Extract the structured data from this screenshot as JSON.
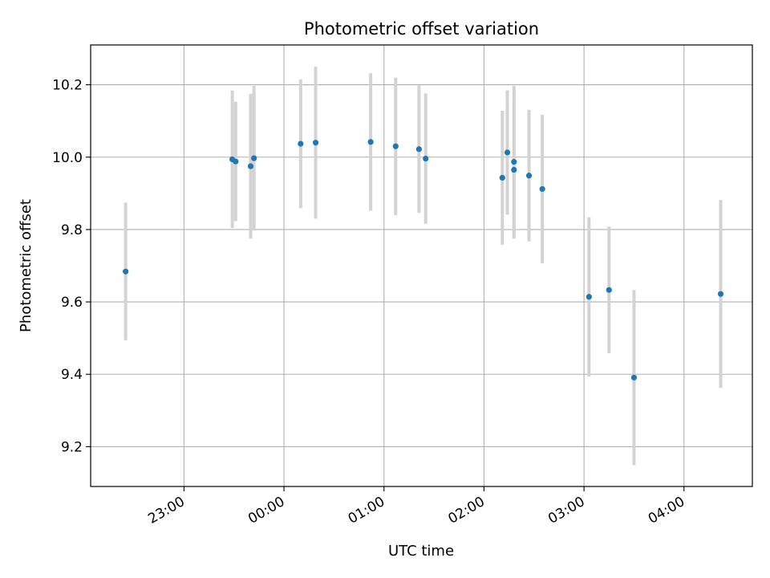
{
  "chart_data": {
    "type": "scatter",
    "title": "Photometric offset variation",
    "xlabel": "UTC time",
    "ylabel": "Photometric offset",
    "x_axis": "time",
    "grid": true,
    "legend": "none",
    "colors": {
      "point": "#1f77b4",
      "errorbar": "#d3d3d3",
      "grid": "#b0b0b0",
      "axis": "#000000"
    },
    "xlim": [
      "22:04",
      "04:41"
    ],
    "ylim": [
      9.09,
      10.31
    ],
    "xticks": [
      "23:00",
      "00:00",
      "01:00",
      "02:00",
      "03:00",
      "04:00"
    ],
    "yticks": [
      "9.2",
      "9.4",
      "9.6",
      "9.8",
      "10.0",
      "10.2"
    ],
    "points": [
      {
        "x": "22:25",
        "y": 9.684,
        "yerr": 0.19
      },
      {
        "x": "23:29",
        "y": 9.994,
        "yerr": 0.19
      },
      {
        "x": "23:31",
        "y": 9.988,
        "yerr": 0.165
      },
      {
        "x": "23:40",
        "y": 9.975,
        "yerr": 0.2
      },
      {
        "x": "23:42",
        "y": 9.997,
        "yerr": 0.2
      },
      {
        "x": "00:10",
        "y": 10.037,
        "yerr": 0.178
      },
      {
        "x": "00:19",
        "y": 10.04,
        "yerr": 0.21
      },
      {
        "x": "00:52",
        "y": 10.042,
        "yerr": 0.19
      },
      {
        "x": "01:07",
        "y": 10.03,
        "yerr": 0.19
      },
      {
        "x": "01:21",
        "y": 10.022,
        "yerr": 0.176
      },
      {
        "x": "01:25",
        "y": 9.996,
        "yerr": 0.18
      },
      {
        "x": "02:11",
        "y": 9.943,
        "yerr": 0.185
      },
      {
        "x": "02:14",
        "y": 10.013,
        "yerr": 0.172
      },
      {
        "x": "02:18",
        "y": 9.987,
        "yerr": 0.21
      },
      {
        "x": "02:18",
        "y": 9.965,
        "yerr": 0.19
      },
      {
        "x": "02:27",
        "y": 9.949,
        "yerr": 0.182
      },
      {
        "x": "02:35",
        "y": 9.912,
        "yerr": 0.205
      },
      {
        "x": "03:03",
        "y": 9.614,
        "yerr": 0.22
      },
      {
        "x": "03:15",
        "y": 9.633,
        "yerr": 0.175
      },
      {
        "x": "03:30",
        "y": 9.391,
        "yerr": 0.242
      },
      {
        "x": "04:22",
        "y": 9.622,
        "yerr": 0.26
      }
    ]
  }
}
